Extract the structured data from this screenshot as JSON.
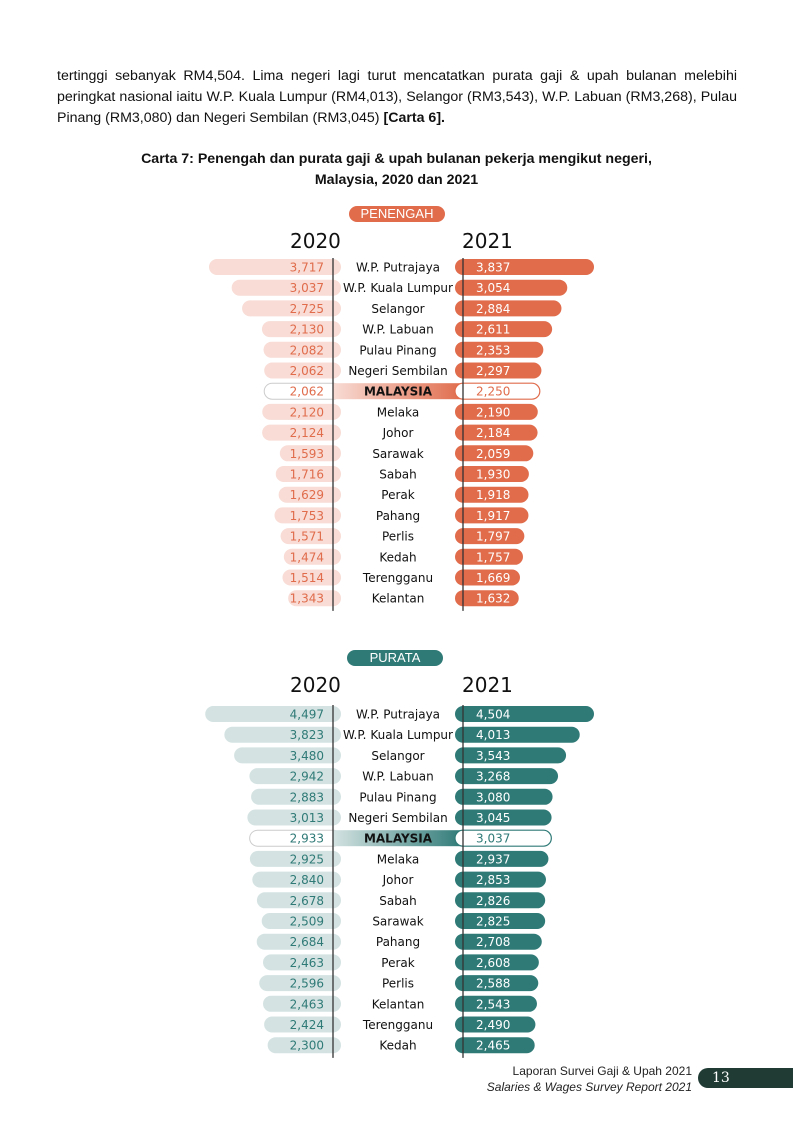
{
  "paragraph": {
    "text": "tertinggi sebanyak RM4,504. Lima negeri lagi turut mencatatkan purata gaji & upah bulanan melebihi peringkat nasional iaitu W.P. Kuala Lumpur (RM4,013), Selangor (RM3,543), W.P. Labuan (RM3,268), Pulau Pinang (RM3,080) dan Negeri Sembilan (RM3,045) ",
    "ref": "[Carta 6]."
  },
  "chart_title": {
    "line1": "Carta 7: Penengah dan purata gaji & upah bulanan pekerja mengikut negeri,",
    "line2": "Malaysia, 2020 dan 2021"
  },
  "colors": {
    "median_2021": "#e06c4c",
    "median_2020": "#f8dcd5",
    "mean_2021": "#2f7a77",
    "mean_2020": "#d4e3e2"
  },
  "chart_data": [
    {
      "type": "bar",
      "panel_label": "PENENGAH",
      "year_left": "2020",
      "year_right": "2021",
      "categories": [
        "W.P. Putrajaya",
        "W.P. Kuala Lumpur",
        "Selangor",
        "W.P. Labuan",
        "Pulau Pinang",
        "Negeri Sembilan",
        "MALAYSIA",
        "Melaka",
        "Johor",
        "Sarawak",
        "Sabah",
        "Perak",
        "Pahang",
        "Perlis",
        "Kedah",
        "Terengganu",
        "Kelantan"
      ],
      "highlight": "MALAYSIA",
      "series": [
        {
          "name": "2020",
          "values": [
            3717,
            3037,
            2725,
            2130,
            2082,
            2062,
            2062,
            2120,
            2124,
            1593,
            1716,
            1629,
            1753,
            1571,
            1474,
            1514,
            1343
          ]
        },
        {
          "name": "2021",
          "values": [
            3837,
            3054,
            2884,
            2611,
            2353,
            2297,
            2250,
            2190,
            2184,
            2059,
            1930,
            1918,
            1917,
            1797,
            1757,
            1669,
            1632
          ]
        }
      ]
    },
    {
      "type": "bar",
      "panel_label": "PURATA",
      "year_left": "2020",
      "year_right": "2021",
      "categories": [
        "W.P. Putrajaya",
        "W.P. Kuala Lumpur",
        "Selangor",
        "W.P. Labuan",
        "Pulau Pinang",
        "Negeri Sembilan",
        "MALAYSIA",
        "Melaka",
        "Johor",
        "Sabah",
        "Sarawak",
        "Pahang",
        "Perak",
        "Perlis",
        "Kelantan",
        "Terengganu",
        "Kedah"
      ],
      "highlight": "MALAYSIA",
      "series": [
        {
          "name": "2020",
          "values": [
            4497,
            3823,
            3480,
            2942,
            2883,
            3013,
            2933,
            2925,
            2840,
            2678,
            2509,
            2684,
            2463,
            2596,
            2463,
            2424,
            2300
          ]
        },
        {
          "name": "2021",
          "values": [
            4504,
            4013,
            3543,
            3268,
            3080,
            3045,
            3037,
            2937,
            2853,
            2826,
            2825,
            2708,
            2608,
            2588,
            2543,
            2490,
            2465
          ]
        }
      ]
    }
  ],
  "footer": {
    "line1": "Laporan Survei Gaji & Upah 2021",
    "line2": "Salaries & Wages Survey Report 2021",
    "page": "13"
  }
}
